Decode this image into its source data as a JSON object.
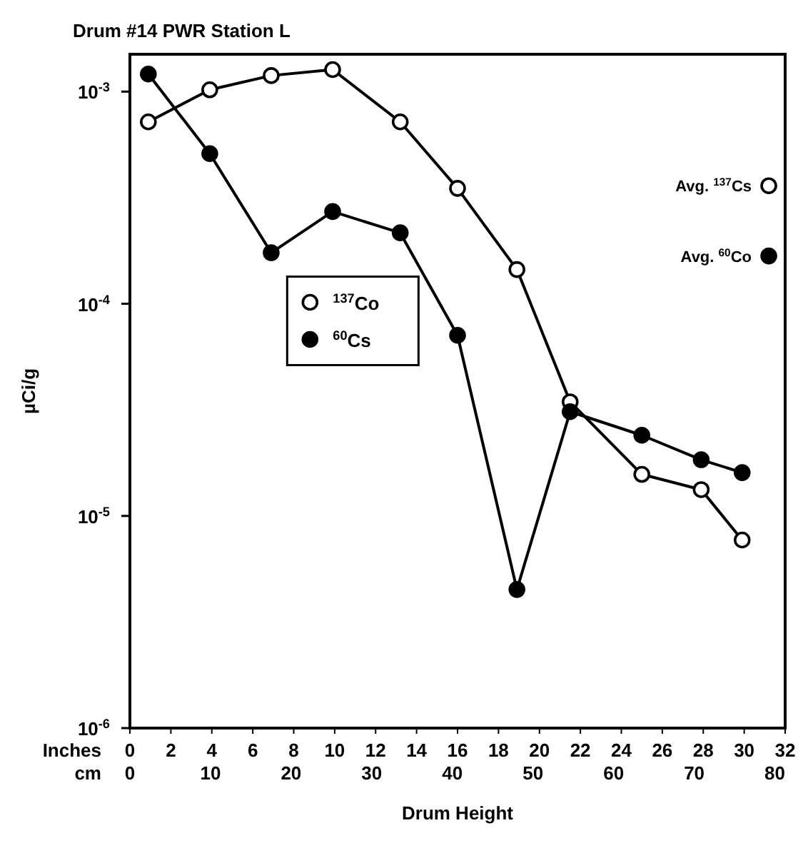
{
  "chart_data": {
    "type": "line",
    "title": "Drum #14 PWR Station L",
    "xlabel": "Drum Height",
    "ylabel": "µCi/g",
    "x": [
      0.9,
      3.9,
      6.9,
      9.9,
      13.2,
      16.0,
      18.9,
      21.5,
      25.0,
      27.9,
      29.9
    ],
    "series": [
      {
        "name": "$^{137}$Co",
        "color": "#000000",
        "values": [
          0.00072,
          0.00102,
          0.00119,
          0.00127,
          0.00072,
          0.00035,
          0.000145,
          3.45e-05,
          1.57e-05,
          1.33e-05,
          7.7e-06
        ]
      },
      {
        "name": "$^{60}$Cs",
        "color": "#000000",
        "values": [
          0.00121,
          0.00051,
          0.000174,
          0.000272,
          0.000216,
          7.1e-05,
          4.5e-06,
          3.1e-05,
          2.4e-05,
          1.84e-05,
          1.6e-05
        ]
      },
      {
        "type": "scatter",
        "name": "Avg. $^{137}$Cs",
        "color": "#000000",
        "x": [
          31.2
        ],
        "values": [
          0.00036
        ]
      },
      {
        "type": "scatter",
        "name": "Avg. $^{60}$Co",
        "color": "#000000",
        "x": [
          31.2
        ],
        "values": [
          0.000168
        ]
      }
    ],
    "log": "y",
    "xlim": [
      0,
      32
    ],
    "xticks": [
      0,
      2,
      4,
      6,
      8,
      10,
      12,
      14,
      16,
      18,
      20,
      22,
      24,
      26,
      28,
      30,
      32
    ],
    "x2lim": [
      0,
      81.28
    ],
    "x2ticks": [
      0,
      10,
      20,
      30,
      40,
      50,
      60,
      70,
      80
    ],
    "ylim": [
      1e-06,
      0.0015
    ],
    "yticks": [
      {
        "value": 1e-06,
        "label": "10$^{-6}$"
      },
      {
        "value": 1e-05,
        "label": "10$^{-5}$"
      },
      {
        "value": 0.0001,
        "label": "10$^{-4}$"
      },
      {
        "value": 0.001,
        "label": "10$^{-3}$"
      }
    ],
    "legend": "center",
    "marker": "circle",
    "line_style": "solid",
    "annotations": [
      "Inches",
      "cm"
    ]
  }
}
